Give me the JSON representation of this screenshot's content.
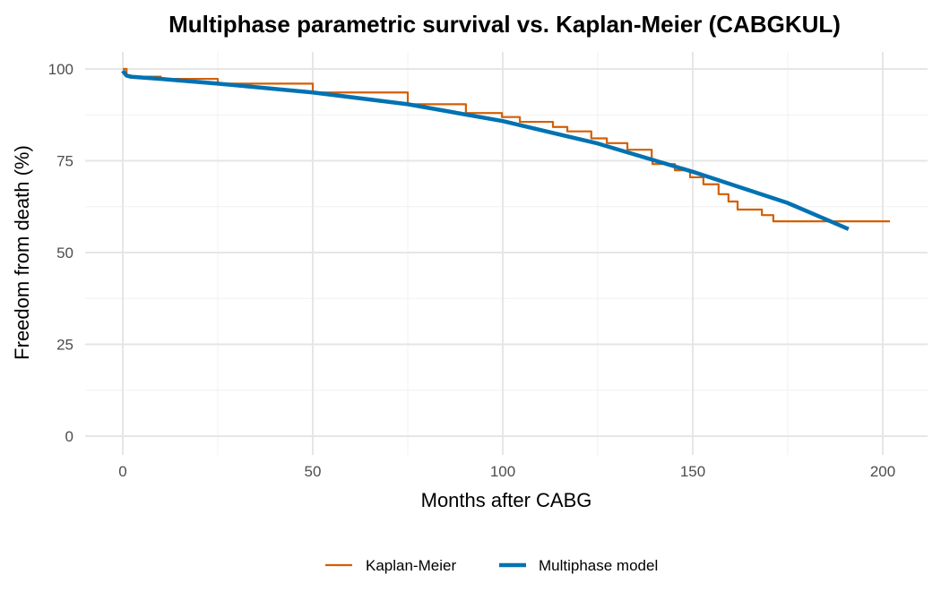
{
  "chart_data": {
    "type": "line",
    "title": "Multiphase parametric survival vs. Kaplan-Meier (CABGKUL)",
    "xlabel": "Months after CABG",
    "ylabel": "Freedom from death (%)",
    "xlim": [
      -8,
      210
    ],
    "ylim": [
      -5,
      105
    ],
    "xticks": [
      0,
      50,
      100,
      150,
      200
    ],
    "yticks": [
      0,
      25,
      50,
      75,
      100
    ],
    "grid": true,
    "legend_position": "bottom",
    "series": [
      {
        "name": "Kaplan-Meier",
        "color": "#D55E00",
        "style": "step",
        "x": [
          0,
          1,
          2,
          10,
          25,
          50,
          75,
          90.3,
          99.8,
          104.5,
          113.2,
          117,
          123.3,
          127.4,
          132.8,
          139.2,
          139.4,
          145.3,
          149.3,
          152.8,
          156.8,
          159.4,
          161.8,
          168.2,
          171.2,
          201.9
        ],
        "y": [
          100,
          98.3,
          97.9,
          97.3,
          96.0,
          93.6,
          90.4,
          88.0,
          86.9,
          85.6,
          84.2,
          83.0,
          81.1,
          79.8,
          78.0,
          75.4,
          74.1,
          72.4,
          70.5,
          68.6,
          65.9,
          63.9,
          61.7,
          60.2,
          58.5,
          58.5
        ]
      },
      {
        "name": "Multiphase model",
        "color": "#0072B2",
        "style": "line",
        "x": [
          0,
          0.5,
          1,
          2,
          10,
          25,
          50,
          75,
          100,
          125,
          150,
          175,
          191
        ],
        "y": [
          99.5,
          98.8,
          98.2,
          97.9,
          97.3,
          96.0,
          93.6,
          90.4,
          85.8,
          79.7,
          72.0,
          63.5,
          56.4
        ]
      }
    ]
  }
}
